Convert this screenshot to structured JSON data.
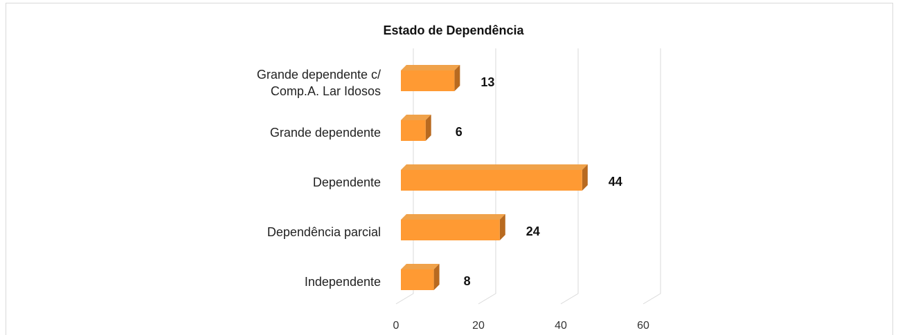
{
  "chart_data": {
    "type": "bar3d_horizontal",
    "title": "Estado de Dependência",
    "categories": [
      "Grande dependente c/ Comp.A. Lar Idosos",
      "Grande dependente",
      "Dependente",
      "Dependência parcial",
      "Independente"
    ],
    "values": [
      13,
      6,
      44,
      24,
      8
    ],
    "color": "#ff9a33",
    "xlim": [
      0,
      60
    ],
    "xticks": [
      0,
      20,
      40,
      60
    ],
    "grid": true
  }
}
